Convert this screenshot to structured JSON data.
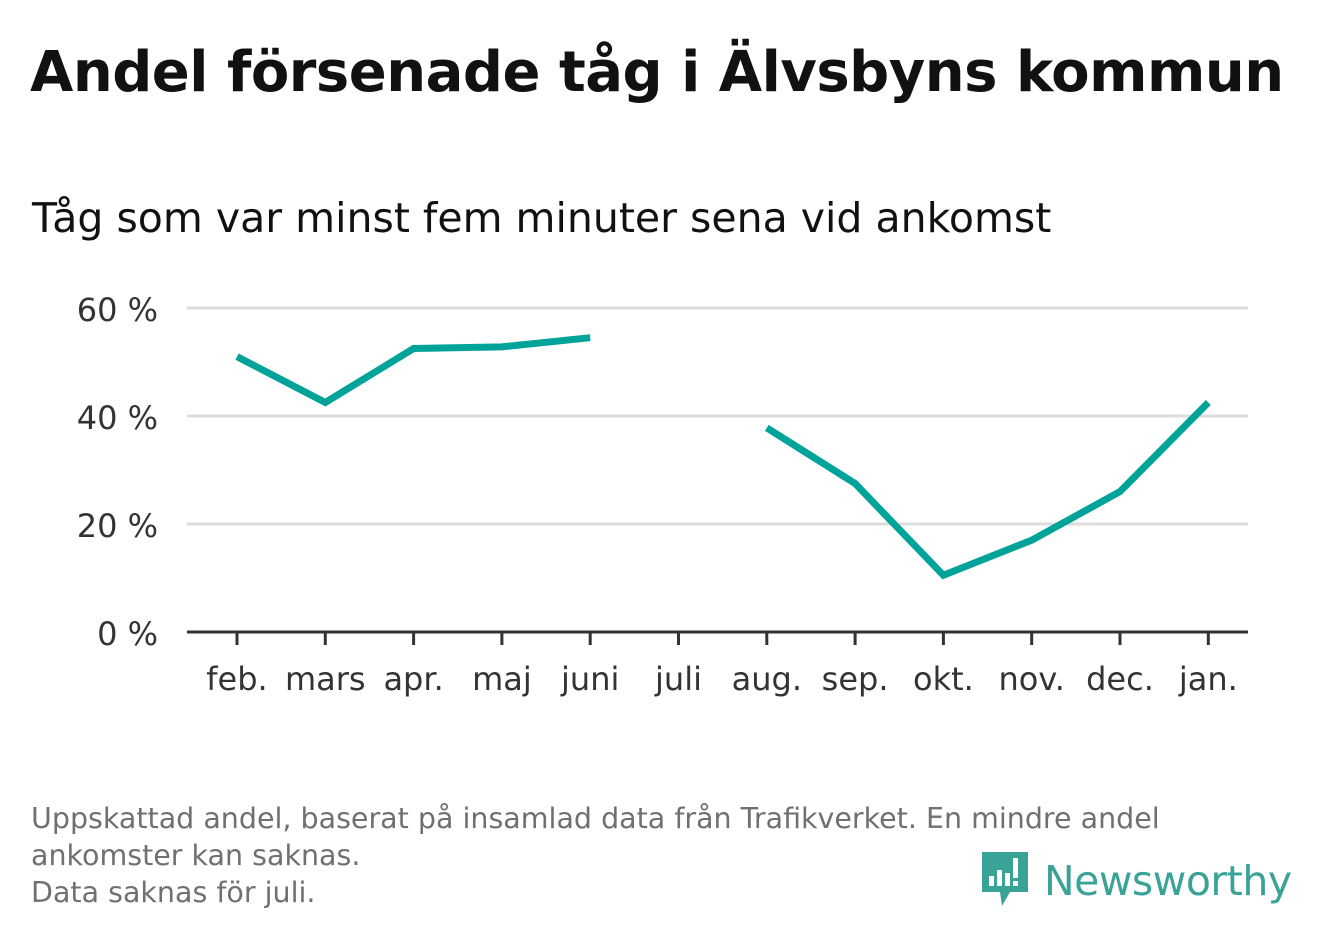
{
  "title": "Andel försenade tåg i Älvsbyns kommun",
  "subtitle": "Tåg som var minst fem minuter sena vid ankomst",
  "footnote": {
    "line1": "Uppskattad andel, baserat på insamlad data från Trafikverket. En mindre andel",
    "line2": "ankomster kan saknas.",
    "line3": "Data saknas för juli."
  },
  "brand": {
    "name": "Newsworthy",
    "icon": "newsworthy-logo-icon",
    "color": "#3aa398"
  },
  "chart_data": {
    "type": "line",
    "categories": [
      "feb.",
      "mars",
      "apr.",
      "maj",
      "juni",
      "juli",
      "aug.",
      "sep.",
      "okt.",
      "nov.",
      "dec.",
      "jan."
    ],
    "series": [
      {
        "values": [
          51,
          42.5,
          52.5,
          52.8,
          54.5,
          null,
          37.8,
          27.5,
          10.5,
          17,
          26,
          42.5
        ]
      }
    ],
    "yticks": [
      "0 %",
      "20 %",
      "40 %",
      "60 %"
    ],
    "ytick_values": [
      0,
      20,
      40,
      60
    ],
    "ylim": [
      0,
      60
    ],
    "grid": true,
    "line_color": "#00a39a",
    "grid_color": "#dddddd",
    "axis_color": "#333333"
  }
}
